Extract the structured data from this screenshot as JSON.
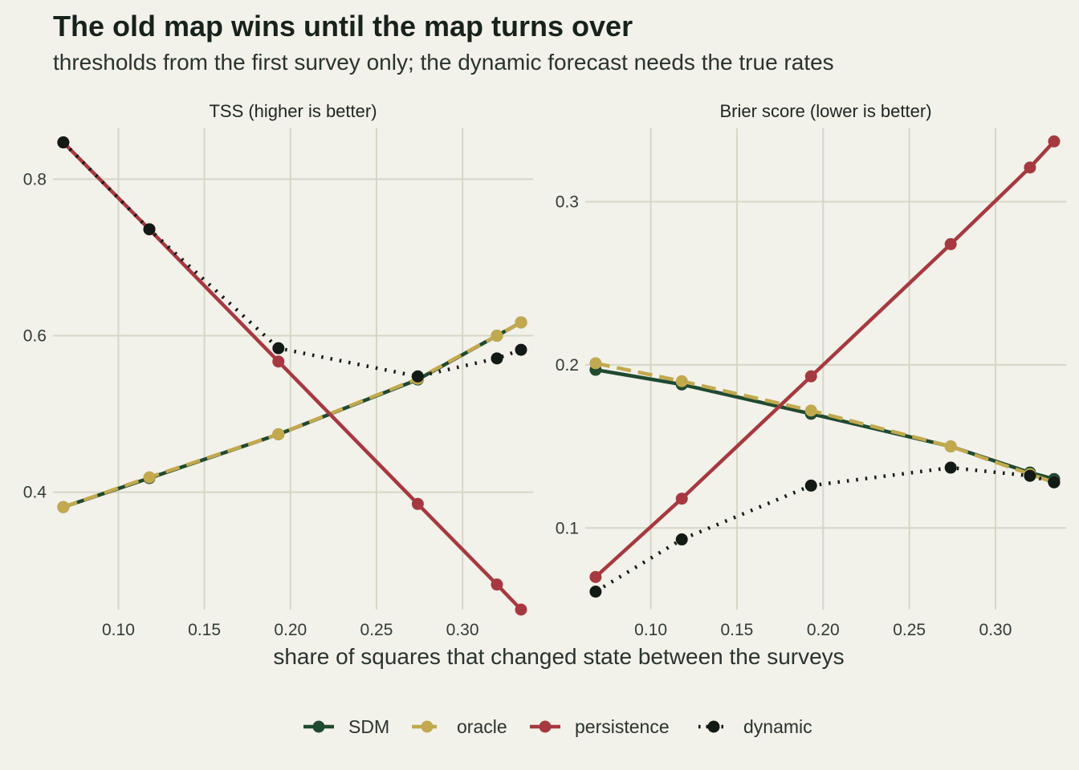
{
  "chart_data": {
    "type": "line",
    "title": "The old map wins until the map turns over",
    "subtitle": "thresholds from the first survey only; the dynamic forecast needs the true rates",
    "xlabel": "share of squares that changed state between the surveys",
    "x": [
      0.068,
      0.118,
      0.193,
      0.274,
      0.32,
      0.334
    ],
    "x_ticks": [
      "0.10",
      "0.15",
      "0.20",
      "0.25",
      "0.30"
    ],
    "legend_position": "bottom",
    "grid": true,
    "series_styles": [
      {
        "name": "SDM",
        "color": "#1f4a30",
        "dash": "solid"
      },
      {
        "name": "oracle",
        "color": "#c2a94e",
        "dash": "dashed"
      },
      {
        "name": "persistence",
        "color": "#a6393f",
        "dash": "solid"
      },
      {
        "name": "dynamic",
        "color": "#121a15",
        "dash": "dotted"
      }
    ],
    "panels": [
      {
        "strip": "TSS (higher is better)",
        "xlim": [
          0.062,
          0.341
        ],
        "ylim": [
          0.25,
          0.865
        ],
        "y_ticks": [
          "0.4",
          "0.6",
          "0.8"
        ],
        "series": [
          {
            "name": "SDM",
            "values": [
              0.381,
              0.418,
              0.474,
              0.544,
              0.6,
              0.617
            ]
          },
          {
            "name": "oracle",
            "values": [
              0.381,
              0.419,
              0.474,
              0.545,
              0.6,
              0.617
            ]
          },
          {
            "name": "persistence",
            "values": [
              0.847,
              0.736,
              0.567,
              0.385,
              0.282,
              0.25
            ]
          },
          {
            "name": "dynamic",
            "values": [
              0.847,
              0.736,
              0.584,
              0.548,
              0.571,
              0.582
            ]
          }
        ]
      },
      {
        "strip": "Brier score (lower is better)",
        "xlim": [
          0.062,
          0.341
        ],
        "ylim": [
          0.05,
          0.345
        ],
        "y_ticks": [
          "0.1",
          "0.2",
          "0.3"
        ],
        "series": [
          {
            "name": "SDM",
            "values": [
              0.197,
              0.188,
              0.17,
              0.15,
              0.134,
              0.13
            ]
          },
          {
            "name": "oracle",
            "values": [
              0.201,
              0.19,
              0.172,
              0.15,
              0.133,
              0.128
            ]
          },
          {
            "name": "persistence",
            "values": [
              0.07,
              0.118,
              0.193,
              0.274,
              0.321,
              0.337
            ]
          },
          {
            "name": "dynamic",
            "values": [
              0.061,
              0.093,
              0.126,
              0.137,
              0.132,
              0.128
            ]
          }
        ]
      }
    ]
  }
}
